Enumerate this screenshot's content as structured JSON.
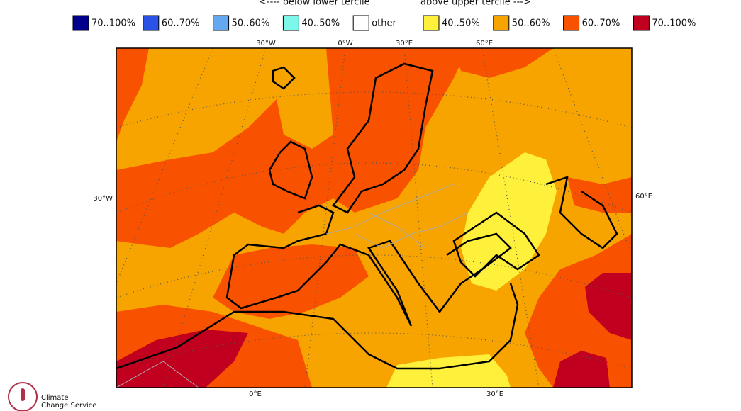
{
  "header": {
    "below": "<---- below lower tercile",
    "above": "above upper tercile --->"
  },
  "legend": [
    {
      "label": "70..100%",
      "color": "#00008c"
    },
    {
      "label": "60..70%",
      "color": "#2a52e6"
    },
    {
      "label": "50..60%",
      "color": "#64a8f0"
    },
    {
      "label": "40..50%",
      "color": "#7cf7ea"
    },
    {
      "label": "other",
      "color": "#ffffff"
    },
    {
      "label": "40..50%",
      "color": "#fff03c"
    },
    {
      "label": "50..60%",
      "color": "#f8a400"
    },
    {
      "label": "60..70%",
      "color": "#f85200"
    },
    {
      "label": "70..100%",
      "color": "#c0001e"
    }
  ],
  "map": {
    "top_labels": [
      "30°W",
      "0°W",
      "30°E",
      "60°E"
    ],
    "left_label": "30°W",
    "right_label": "60°E",
    "bottom_labels": [
      "0°E",
      "30°E"
    ]
  },
  "logo": {
    "line1": "Climate",
    "line2": "Change Service"
  }
}
